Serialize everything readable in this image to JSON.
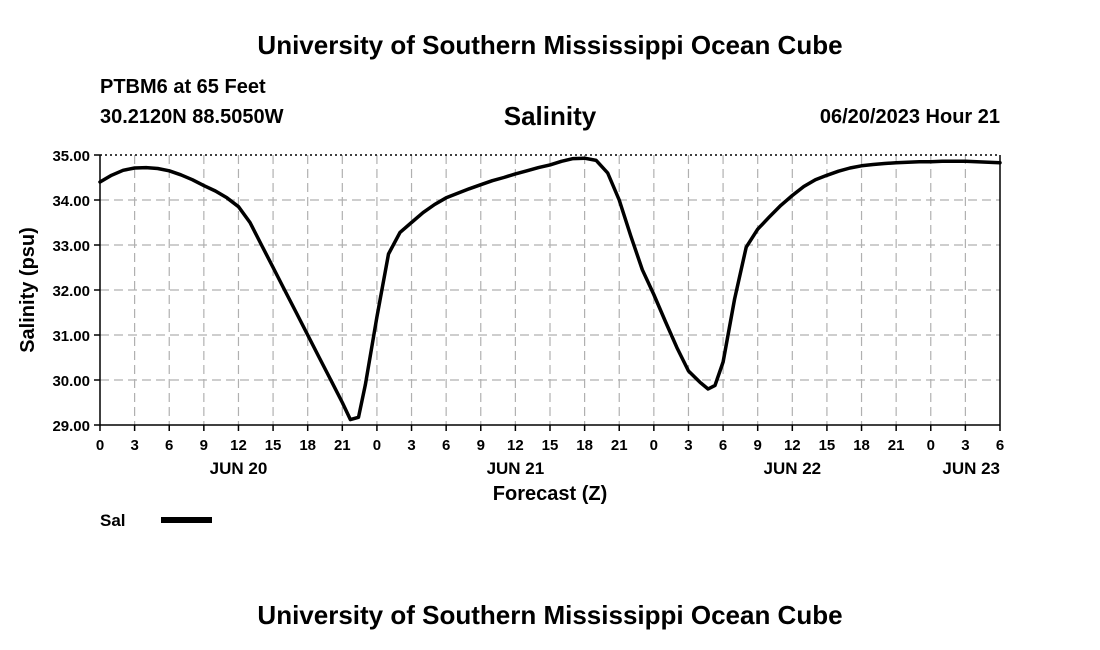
{
  "header": {
    "title": "University of Southern Mississippi Ocean Cube",
    "station": "PTBM6 at 65 Feet",
    "coords": "30.2120N  88.5050W",
    "timestamp": "06/20/2023 Hour 21"
  },
  "footer": {
    "title": "University of Southern Mississippi Ocean Cube"
  },
  "legend": {
    "label": "Sal",
    "color": "#000000"
  },
  "chart_data": {
    "type": "line",
    "title": "Salinity",
    "xlabel": "Forecast (Z)",
    "ylabel": "Salinity (psu)",
    "ylim": [
      29.0,
      35.0
    ],
    "yticks": [
      "29.00",
      "30.00",
      "31.00",
      "32.00",
      "33.00",
      "34.00",
      "35.00"
    ],
    "x_unit": "hours since 2023-06-20 00Z",
    "xlim": [
      0,
      78
    ],
    "xtick_labels": [
      "0",
      "3",
      "6",
      "9",
      "12",
      "15",
      "18",
      "21",
      "0",
      "3",
      "6",
      "9",
      "12",
      "15",
      "18",
      "21",
      "0",
      "3",
      "6",
      "9",
      "12",
      "15",
      "18",
      "21",
      "0",
      "3",
      "6"
    ],
    "date_labels": [
      {
        "label": "JUN 20",
        "at_hour": 12
      },
      {
        "label": "JUN 21",
        "at_hour": 36
      },
      {
        "label": "JUN 22",
        "at_hour": 60
      },
      {
        "label": "JUN 23",
        "at_hour": 78
      }
    ],
    "grid": true,
    "legend_position": "bottom-left",
    "series": [
      {
        "name": "Sal",
        "x": [
          0,
          1,
          2,
          3,
          4,
          5,
          6,
          7,
          8,
          9,
          10,
          11,
          12,
          13,
          14,
          15,
          16,
          17,
          18,
          19,
          20,
          21,
          21.7,
          22.4,
          23,
          24,
          25,
          26,
          27,
          28,
          29,
          30,
          31,
          32,
          33,
          34,
          35,
          36,
          37,
          38,
          39,
          40,
          41,
          42,
          43,
          44,
          45,
          46,
          47,
          48,
          49,
          50,
          51,
          52,
          52.7,
          53.3,
          54,
          55,
          56,
          57,
          58,
          59,
          60,
          61,
          62,
          63,
          64,
          65,
          66,
          67,
          68,
          69,
          70,
          71,
          72,
          73,
          74,
          75,
          76,
          77,
          78
        ],
        "values": [
          34.4,
          34.55,
          34.66,
          34.71,
          34.72,
          34.7,
          34.65,
          34.56,
          34.45,
          34.32,
          34.2,
          34.05,
          33.85,
          33.5,
          33.0,
          32.5,
          32.0,
          31.5,
          31.0,
          30.5,
          30.0,
          29.5,
          29.12,
          29.17,
          29.9,
          31.4,
          32.8,
          33.28,
          33.5,
          33.72,
          33.9,
          34.05,
          34.15,
          34.25,
          34.34,
          34.43,
          34.5,
          34.58,
          34.65,
          34.72,
          34.78,
          34.86,
          34.92,
          34.93,
          34.88,
          34.6,
          34.0,
          33.2,
          32.45,
          31.9,
          31.3,
          30.72,
          30.2,
          29.95,
          29.8,
          29.88,
          30.4,
          31.8,
          32.95,
          33.35,
          33.62,
          33.88,
          34.1,
          34.3,
          34.45,
          34.55,
          34.64,
          34.71,
          34.76,
          34.79,
          34.81,
          34.83,
          34.84,
          34.85,
          34.85,
          34.86,
          34.86,
          34.86,
          34.85,
          34.84,
          34.83
        ]
      }
    ]
  }
}
